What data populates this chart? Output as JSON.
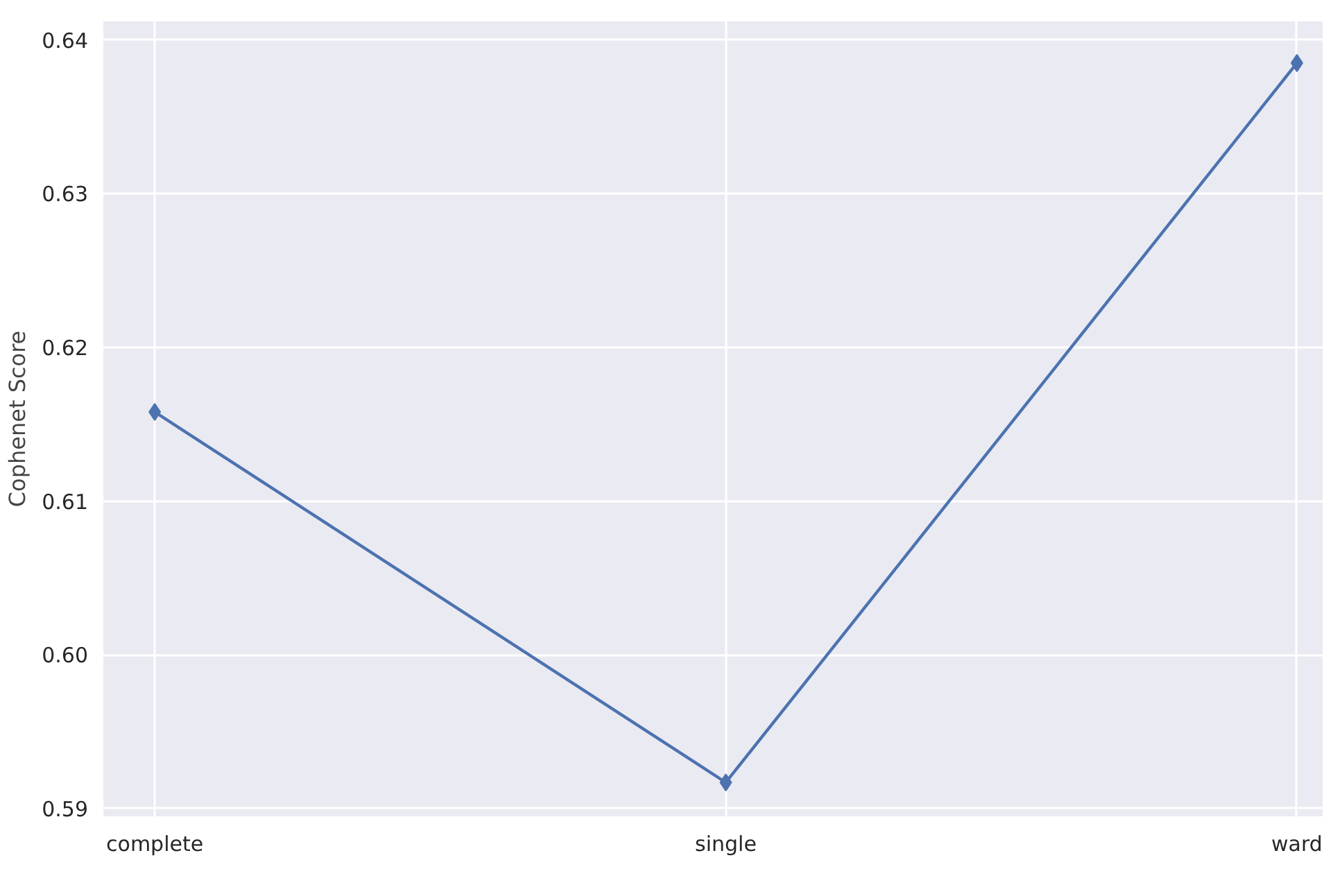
{
  "chart_data": {
    "type": "line",
    "ylabel": "Cophenet Score",
    "categories": [
      "complete",
      "single",
      "ward"
    ],
    "series": [
      {
        "color": "#4c72b0",
        "values": [
          0.6158,
          0.5917,
          0.6385
        ]
      }
    ],
    "ylim": [
      0.5895,
      0.6412
    ],
    "yticks": [
      {
        "value": 0.59,
        "label": "0.59"
      },
      {
        "value": 0.6,
        "label": "0.60"
      },
      {
        "value": 0.61,
        "label": "0.61"
      },
      {
        "value": 0.62,
        "label": "0.62"
      },
      {
        "value": 0.63,
        "label": "0.63"
      },
      {
        "value": 0.64,
        "label": "0.64"
      }
    ],
    "grid": true,
    "marker": "diamond",
    "line_style": "solid"
  }
}
